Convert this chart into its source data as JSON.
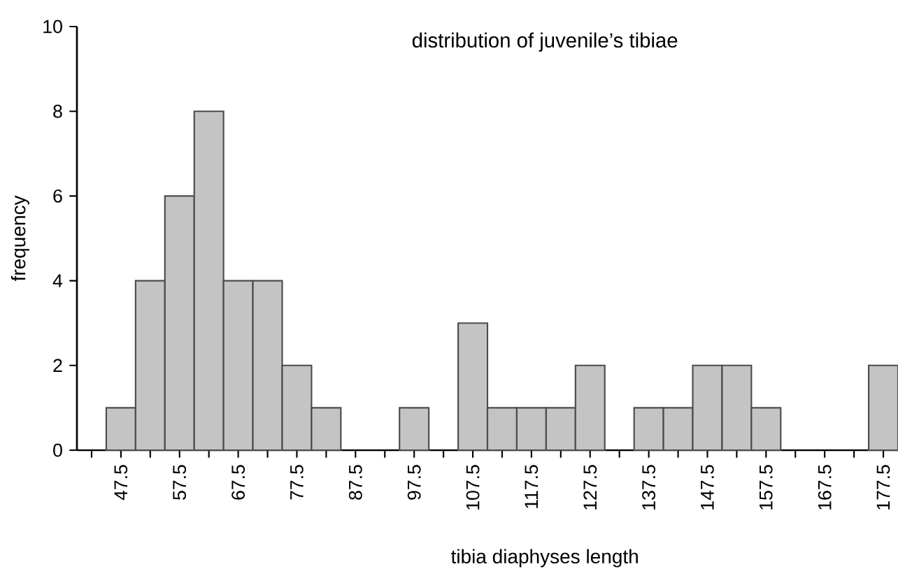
{
  "chart_data": {
    "type": "histogram",
    "title": "distribution of juvenile’s tibiae",
    "xlabel": "tibia diaphyses length",
    "ylabel": "frequency",
    "bins": [
      45,
      50,
      55,
      60,
      65,
      70,
      75,
      80,
      85,
      90,
      95,
      100,
      105,
      110,
      115,
      120,
      125,
      130,
      135,
      140,
      145,
      150,
      155,
      160,
      165,
      170,
      175,
      180
    ],
    "values": [
      1,
      4,
      6,
      8,
      4,
      4,
      2,
      1,
      0,
      0,
      1,
      0,
      3,
      1,
      1,
      1,
      2,
      0,
      1,
      1,
      2,
      2,
      1,
      0,
      0,
      0,
      2
    ],
    "color": "#c4c4c4",
    "xlim": [
      40,
      180
    ],
    "ylim": [
      0,
      10
    ],
    "xticks": [
      {
        "value": 42.5,
        "label": null
      },
      {
        "value": 47.5,
        "label": "47.5"
      },
      {
        "value": 52.5,
        "label": null
      },
      {
        "value": 57.5,
        "label": "57.5"
      },
      {
        "value": 62.5,
        "label": null
      },
      {
        "value": 67.5,
        "label": "67.5"
      },
      {
        "value": 72.5,
        "label": null
      },
      {
        "value": 77.5,
        "label": "77.5"
      },
      {
        "value": 82.5,
        "label": null
      },
      {
        "value": 87.5,
        "label": "87.5"
      },
      {
        "value": 92.5,
        "label": null
      },
      {
        "value": 97.5,
        "label": "97.5"
      },
      {
        "value": 102.5,
        "label": null
      },
      {
        "value": 107.5,
        "label": "107.5"
      },
      {
        "value": 112.5,
        "label": null
      },
      {
        "value": 117.5,
        "label": "117.5"
      },
      {
        "value": 122.5,
        "label": null
      },
      {
        "value": 127.5,
        "label": "127.5"
      },
      {
        "value": 132.5,
        "label": null
      },
      {
        "value": 137.5,
        "label": "137.5"
      },
      {
        "value": 142.5,
        "label": null
      },
      {
        "value": 147.5,
        "label": "147.5"
      },
      {
        "value": 152.5,
        "label": null
      },
      {
        "value": 157.5,
        "label": "157.5"
      },
      {
        "value": 162.5,
        "label": null
      },
      {
        "value": 167.5,
        "label": "167.5"
      },
      {
        "value": 172.5,
        "label": null
      },
      {
        "value": 177.5,
        "label": "177.5"
      }
    ],
    "yticks": [
      0,
      2,
      4,
      6,
      8,
      10
    ]
  }
}
